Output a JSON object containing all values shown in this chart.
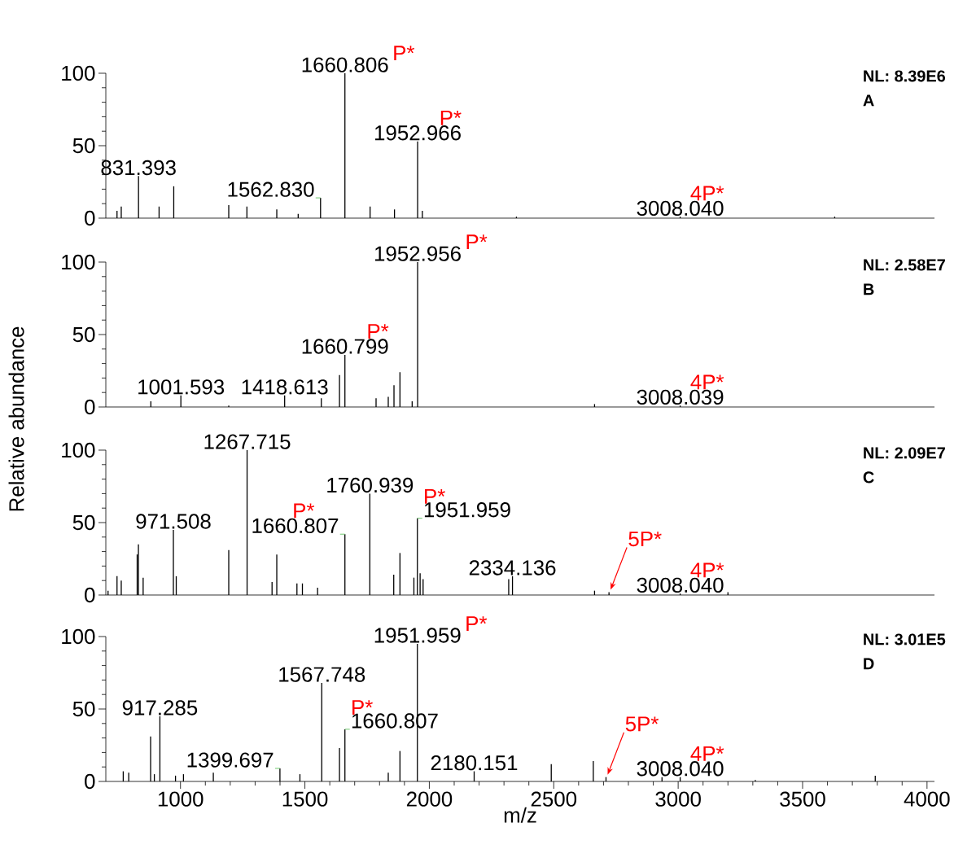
{
  "chart_data": [
    {
      "type": "bar",
      "xlim": [
        700,
        4030
      ],
      "ylim": [
        0,
        100
      ],
      "yticks": [
        0,
        50,
        100
      ],
      "tick_labels": "y",
      "series": [
        {
          "color": "#000000",
          "x": [
            745,
            762,
            831.393,
            914,
            973,
            1194,
            1267,
            1387,
            1473,
            1562.83,
            1660.806,
            1762,
            1860,
            1952.966,
            1972,
            2350,
            3008.04,
            3629
          ],
          "values": [
            5,
            8,
            29,
            8,
            22,
            9,
            8,
            6,
            3,
            14,
            100,
            8,
            6,
            53,
            5,
            1,
            1,
            1
          ]
        }
      ],
      "annotations": [
        {
          "text": "831.393",
          "x": 831.393,
          "y": 29
        },
        {
          "text": "1562.830",
          "x": 1562.83,
          "y": 14
        },
        {
          "text": "1660.806",
          "x": 1660.806,
          "y": 100
        },
        {
          "text": "1952.966",
          "x": 1952.966,
          "y": 53
        },
        {
          "text": "3008.040",
          "x": 3008.04,
          "y": 1
        },
        {
          "text": "P*",
          "x": 1660.806,
          "y": 100
        },
        {
          "text": "P*",
          "x": 1952.966,
          "y": 53
        },
        {
          "text": "4P*",
          "x": 3008.04,
          "y": 1
        },
        "NL: 8.39E6",
        "A"
      ]
    },
    {
      "type": "bar",
      "xlim": [
        700,
        4030
      ],
      "ylim": [
        0,
        100
      ],
      "yticks": [
        0,
        50,
        100
      ],
      "tick_labels": "y",
      "ylabel": "Relative abundance",
      "series": [
        {
          "color": "#000000",
          "x": [
            881,
            1001.593,
            1194,
            1418.613,
            1566,
            1639,
            1660.799,
            1786,
            1835,
            1858,
            1882,
            1931,
            1952.956,
            2664,
            3008.039
          ],
          "values": [
            4,
            8,
            1,
            8,
            6,
            22,
            36,
            6,
            7,
            15,
            24,
            4,
            100,
            2,
            1
          ]
        }
      ],
      "annotations": [
        {
          "text": "1001.593",
          "x": 1001.593,
          "y": 8
        },
        {
          "text": "1418.613",
          "x": 1418.613,
          "y": 8
        },
        {
          "text": "1660.799",
          "x": 1660.799,
          "y": 36
        },
        {
          "text": "1952.956",
          "x": 1952.956,
          "y": 100
        },
        {
          "text": "3008.039",
          "x": 3008.039,
          "y": 1
        },
        {
          "text": "P*",
          "x": 1952.956,
          "y": 100
        },
        {
          "text": "P*",
          "x": 1660.799,
          "y": 36
        },
        {
          "text": "4P*",
          "x": 3008.039,
          "y": 1
        },
        "NL: 2.58E7",
        "B"
      ]
    },
    {
      "type": "bar",
      "xlim": [
        700,
        4030
      ],
      "ylim": [
        0,
        100
      ],
      "yticks": [
        0,
        50,
        100
      ],
      "tick_labels": "y",
      "series": [
        {
          "color": "#000000",
          "x": [
            709,
            745,
            762,
            826,
            831,
            850,
            971.508,
            983,
            1194,
            1267.715,
            1368,
            1387,
            1468,
            1490,
            1551,
            1660.807,
            1760.939,
            1857,
            1882,
            1938,
            1951.959,
            1963,
            1975,
            2319,
            2334.136,
            2664,
            2722,
            3008.04,
            3200
          ],
          "values": [
            3,
            13,
            10,
            28,
            35,
            12,
            45,
            13,
            31,
            100,
            9,
            28,
            8,
            8,
            5,
            42,
            70,
            14,
            29,
            12,
            53,
            15,
            11,
            11,
            13,
            3,
            2,
            1,
            2
          ]
        }
      ],
      "annotations": [
        {
          "text": "971.508",
          "x": 971.508,
          "y": 45
        },
        {
          "text": "1267.715",
          "x": 1267.715,
          "y": 100
        },
        {
          "text": "1660.807",
          "x": 1660.807,
          "y": 42
        },
        {
          "text": "1760.939",
          "x": 1760.939,
          "y": 70
        },
        {
          "text": "1951.959",
          "x": 1951.959,
          "y": 53
        },
        {
          "text": "2334.136",
          "x": 2334.136,
          "y": 13
        },
        {
          "text": "3008.040",
          "x": 3008.04,
          "y": 1
        },
        {
          "text": "P*",
          "x": 1660.807,
          "y": 42
        },
        {
          "text": "P*",
          "x": 1951.959,
          "y": 53
        },
        {
          "text": "4P*",
          "x": 3008.04,
          "y": 1
        },
        {
          "text": "5P*",
          "x": 2722,
          "y": 2
        },
        "NL: 2.09E7",
        "C"
      ]
    },
    {
      "type": "bar",
      "xlim": [
        700,
        4030
      ],
      "ylim": [
        0,
        100
      ],
      "yticks": [
        0,
        50,
        100
      ],
      "xticks": [
        1000,
        1500,
        2000,
        2500,
        3000,
        3500,
        4000
      ],
      "xlabel": "m/z",
      "series": [
        {
          "color": "#000000",
          "x": [
            770,
            792,
            880,
            895,
            917.285,
            980,
            1012,
            1132,
            1399.697,
            1480,
            1567.748,
            1639,
            1660.807,
            1835,
            1882,
            1951.959,
            2180.151,
            2490,
            2659,
            2710,
            2935,
            3008.04,
            3310,
            3792
          ],
          "values": [
            7,
            6,
            31,
            5,
            45,
            4,
            5,
            6,
            9,
            5,
            68,
            23,
            36,
            6,
            21,
            95,
            7,
            12,
            14,
            3,
            3,
            3,
            1,
            4
          ]
        }
      ],
      "annotations": [
        {
          "text": "917.285",
          "x": 917.285,
          "y": 45
        },
        {
          "text": "1399.697",
          "x": 1399.697,
          "y": 9
        },
        {
          "text": "1567.748",
          "x": 1567.748,
          "y": 68
        },
        {
          "text": "1660.807",
          "x": 1660.807,
          "y": 36
        },
        {
          "text": "1951.959",
          "x": 1951.959,
          "y": 95
        },
        {
          "text": "2180.151",
          "x": 2180.151,
          "y": 7
        },
        {
          "text": "3008.040",
          "x": 3008.04,
          "y": 3
        },
        {
          "text": "P*",
          "x": 1951.959,
          "y": 95
        },
        {
          "text": "P*",
          "x": 1660.807,
          "y": 36
        },
        {
          "text": "4P*",
          "x": 3008.04,
          "y": 3
        },
        {
          "text": "5P*",
          "x": 2710,
          "y": 3
        },
        "NL: 3.01E5",
        "D"
      ]
    }
  ]
}
